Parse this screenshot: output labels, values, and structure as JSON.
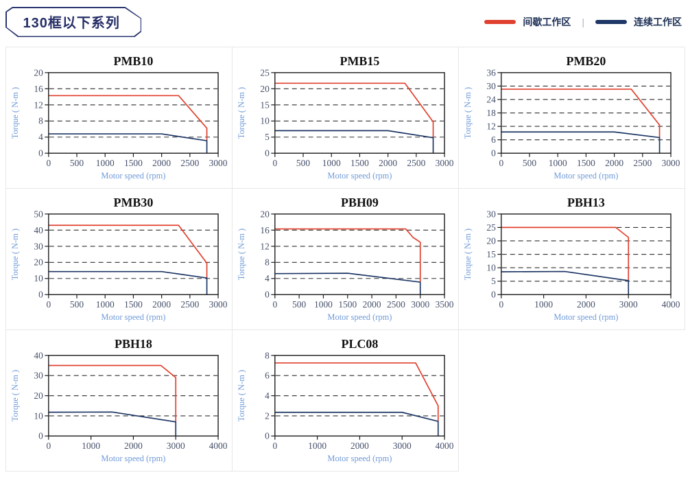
{
  "header": {
    "badge": "130框以下系列",
    "legend": [
      {
        "label": "间歇工作区",
        "color": "#e0402e"
      },
      {
        "label": "连续工作区",
        "color": "#1e3766"
      }
    ],
    "legend_separator": "|"
  },
  "colors": {
    "frame": "#1a1a1a",
    "gridline": "#2e2e2e",
    "tick_text": "#46506a",
    "axis_label": "#6f9ad8",
    "intermittent": "#e0402e",
    "continuous": "#1e3766"
  },
  "chart_data": [
    {
      "type": "line",
      "title": "PMB10",
      "xlabel": "Motor speed (rpm)",
      "ylabel": "Torque ( N-m )",
      "xlim": [
        0,
        3000
      ],
      "ylim": [
        0,
        20
      ],
      "xticks": [
        0,
        500,
        1000,
        1500,
        2000,
        2500,
        3000
      ],
      "yticks": [
        0,
        4,
        8,
        12,
        16,
        20
      ],
      "grid": "dashed-horizontal",
      "legend_position": "none",
      "series": [
        {
          "name": "间歇工作区",
          "color": "#e0402e",
          "points": [
            [
              0,
              14.3
            ],
            [
              2300,
              14.3
            ],
            [
              2800,
              6.2
            ],
            [
              2800,
              3.1
            ]
          ]
        },
        {
          "name": "连续工作区",
          "color": "#1e3766",
          "points": [
            [
              0,
              4.8
            ],
            [
              2000,
              4.8
            ],
            [
              2800,
              3.1
            ],
            [
              2800,
              0
            ]
          ]
        }
      ]
    },
    {
      "type": "line",
      "title": "PMB15",
      "xlabel": "Motor speed (rpm)",
      "ylabel": "Torque ( N-m )",
      "xlim": [
        0,
        3000
      ],
      "ylim": [
        0,
        25
      ],
      "xticks": [
        0,
        500,
        1000,
        1500,
        2000,
        2500,
        3000
      ],
      "yticks": [
        0,
        5,
        10,
        15,
        20,
        25
      ],
      "grid": "dashed-horizontal",
      "legend_position": "none",
      "series": [
        {
          "name": "间歇工作区",
          "color": "#e0402e",
          "points": [
            [
              0,
              21.7
            ],
            [
              2300,
              21.7
            ],
            [
              2800,
              9.7
            ],
            [
              2800,
              4.8
            ]
          ]
        },
        {
          "name": "连续工作区",
          "color": "#1e3766",
          "points": [
            [
              0,
              7
            ],
            [
              2000,
              7
            ],
            [
              2800,
              4.8
            ],
            [
              2800,
              0
            ]
          ]
        }
      ]
    },
    {
      "type": "line",
      "title": "PMB20",
      "xlabel": "Motor speed (rpm)",
      "ylabel": "Torque ( N-m )",
      "xlim": [
        0,
        3000
      ],
      "ylim": [
        0,
        36
      ],
      "xticks": [
        0,
        500,
        1000,
        1500,
        2000,
        2500,
        3000
      ],
      "yticks": [
        0,
        6,
        12,
        18,
        24,
        30,
        36
      ],
      "grid": "dashed-horizontal",
      "legend_position": "none",
      "series": [
        {
          "name": "间歇工作区",
          "color": "#e0402e",
          "points": [
            [
              0,
              28.6
            ],
            [
              2300,
              28.6
            ],
            [
              2800,
              12.6
            ],
            [
              2800,
              7
            ]
          ]
        },
        {
          "name": "连续工作区",
          "color": "#1e3766",
          "points": [
            [
              0,
              9.5
            ],
            [
              2000,
              9.5
            ],
            [
              2800,
              7
            ],
            [
              2800,
              0
            ]
          ]
        }
      ]
    },
    {
      "type": "line",
      "title": "PMB30",
      "xlabel": "Motor speed (rpm)",
      "ylabel": "Torque ( N-m )",
      "xlim": [
        0,
        3000
      ],
      "ylim": [
        0,
        50
      ],
      "xticks": [
        0,
        500,
        1000,
        1500,
        2000,
        2500,
        3000
      ],
      "yticks": [
        0,
        10,
        20,
        30,
        40,
        50
      ],
      "grid": "dashed-horizontal",
      "legend_position": "none",
      "series": [
        {
          "name": "间歇工作区",
          "color": "#e0402e",
          "points": [
            [
              0,
              43
            ],
            [
              2300,
              43
            ],
            [
              2800,
              19.5
            ],
            [
              2800,
              10.3
            ]
          ]
        },
        {
          "name": "连续工作区",
          "color": "#1e3766",
          "points": [
            [
              0,
              14.3
            ],
            [
              2000,
              14.3
            ],
            [
              2800,
              10.3
            ],
            [
              2800,
              0
            ]
          ]
        }
      ]
    },
    {
      "type": "line",
      "title": "PBH09",
      "xlabel": "Motor speed (rpm)",
      "ylabel": "Torque ( N-m )",
      "xlim": [
        0,
        3500
      ],
      "ylim": [
        0,
        20
      ],
      "xticks": [
        0,
        500,
        1000,
        1500,
        2000,
        2500,
        3000,
        3500
      ],
      "yticks": [
        0,
        4,
        8,
        12,
        16,
        20
      ],
      "grid": "dashed-horizontal",
      "legend_position": "none",
      "series": [
        {
          "name": "间歇工作区",
          "color": "#e0402e",
          "points": [
            [
              0,
              16.3
            ],
            [
              2700,
              16.3
            ],
            [
              2850,
              14.2
            ],
            [
              3000,
              13
            ],
            [
              3000,
              3.1
            ]
          ]
        },
        {
          "name": "连续工作区",
          "color": "#1e3766",
          "points": [
            [
              0,
              5.2
            ],
            [
              1500,
              5.3
            ],
            [
              3000,
              3.1
            ],
            [
              3000,
              0
            ]
          ]
        }
      ]
    },
    {
      "type": "line",
      "title": "PBH13",
      "xlabel": "Motor speed (rpm)",
      "ylabel": "Torque ( N-m )",
      "xlim": [
        0,
        4000
      ],
      "ylim": [
        0,
        30
      ],
      "xticks": [
        0,
        1000,
        2000,
        3000,
        4000
      ],
      "yticks": [
        0,
        5,
        10,
        15,
        20,
        25,
        30
      ],
      "grid": "dashed-horizontal",
      "legend_position": "none",
      "series": [
        {
          "name": "间歇工作区",
          "color": "#e0402e",
          "points": [
            [
              0,
              25
            ],
            [
              2700,
              25
            ],
            [
              3000,
              21.3
            ],
            [
              3000,
              5.2
            ]
          ]
        },
        {
          "name": "连续工作区",
          "color": "#1e3766",
          "points": [
            [
              0,
              8.5
            ],
            [
              1500,
              8.6
            ],
            [
              3000,
              5.2
            ],
            [
              3000,
              0
            ]
          ]
        }
      ]
    },
    {
      "type": "line",
      "title": "PBH18",
      "xlabel": "Motor speed (rpm)",
      "ylabel": "Torque ( N-m )",
      "xlim": [
        0,
        4000
      ],
      "ylim": [
        0,
        40
      ],
      "xticks": [
        0,
        1000,
        2000,
        3000,
        4000
      ],
      "yticks": [
        0,
        10,
        20,
        30,
        40
      ],
      "grid": "dashed-horizontal",
      "legend_position": "none",
      "series": [
        {
          "name": "间歇工作区",
          "color": "#e0402e",
          "points": [
            [
              0,
              35
            ],
            [
              2650,
              35
            ],
            [
              3000,
              29
            ],
            [
              3000,
              7
            ]
          ]
        },
        {
          "name": "连续工作区",
          "color": "#1e3766",
          "points": [
            [
              0,
              11.8
            ],
            [
              1500,
              11.9
            ],
            [
              3000,
              7
            ],
            [
              3000,
              0
            ]
          ]
        }
      ]
    },
    {
      "type": "line",
      "title": "PLC08",
      "xlabel": "Motor speed (rpm)",
      "ylabel": "Torque ( N-m )",
      "xlim": [
        0,
        4000
      ],
      "ylim": [
        0,
        8
      ],
      "xticks": [
        0,
        1000,
        2000,
        3000,
        4000
      ],
      "yticks": [
        0,
        2,
        4,
        6,
        8
      ],
      "grid": "dashed-horizontal",
      "legend_position": "none",
      "series": [
        {
          "name": "间歇工作区",
          "color": "#e0402e",
          "points": [
            [
              0,
              7.25
            ],
            [
              3320,
              7.25
            ],
            [
              3850,
              3
            ],
            [
              3850,
              1.45
            ]
          ]
        },
        {
          "name": "连续工作区",
          "color": "#1e3766",
          "points": [
            [
              0,
              2.35
            ],
            [
              3000,
              2.35
            ],
            [
              3850,
              1.45
            ],
            [
              3850,
              0
            ]
          ]
        }
      ]
    }
  ]
}
